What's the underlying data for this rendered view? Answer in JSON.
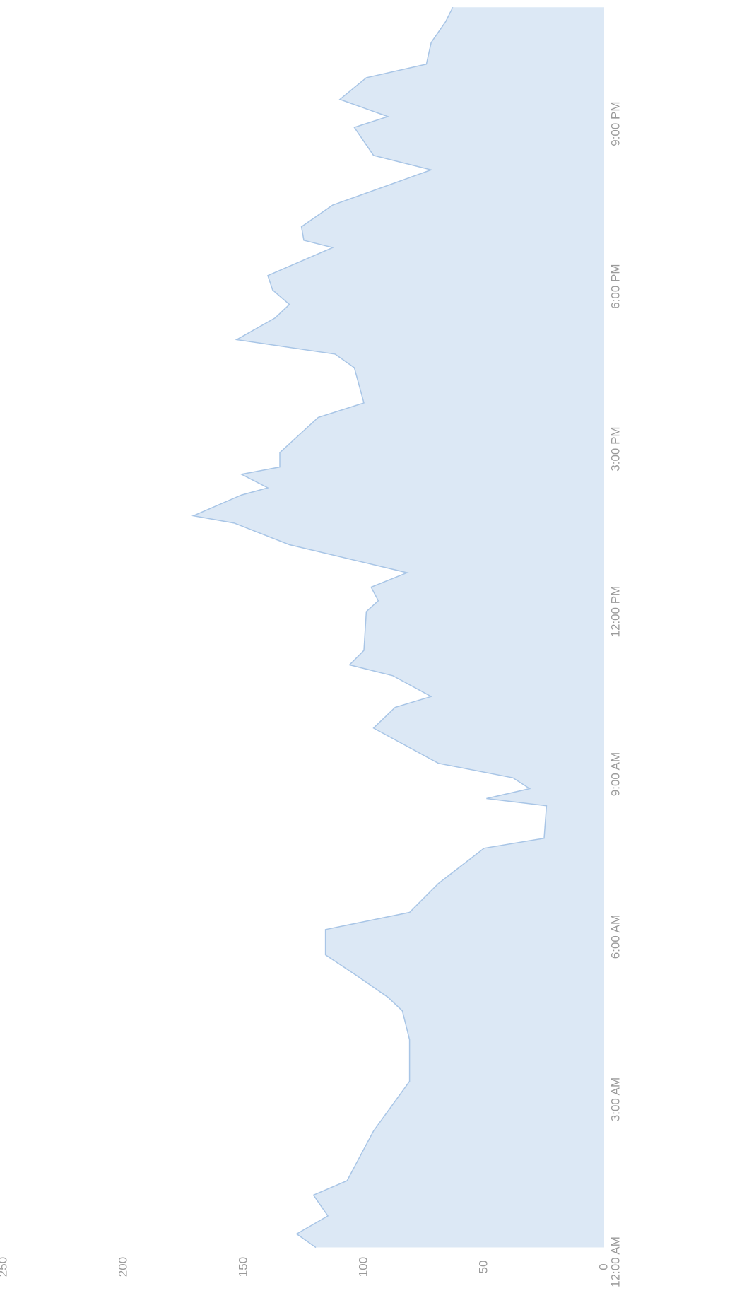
{
  "chart_data": {
    "type": "area",
    "color": "#dce8f5",
    "line_color": "#a8c5e6",
    "x": [
      16,
      31,
      51,
      74,
      90,
      145,
      200,
      246,
      278,
      293,
      317,
      340,
      368,
      387,
      419,
      458,
      469,
      505,
      513,
      524,
      536,
      552,
      591,
      614,
      626,
      649,
      661,
      677,
      720,
      732,
      747,
      763,
      794,
      818,
      826,
      849,
      857,
      872,
      880,
      896,
      935,
      951,
      990,
      1005,
      1021,
      1045,
      1060,
      1076,
      1092,
      1123,
      1131,
      1146,
      1170,
      1209,
      1225,
      1256,
      1268,
      1287,
      1311,
      1326,
      1350,
      1373,
      1389
    ],
    "values": [
      120,
      128,
      115,
      121,
      107,
      96,
      81,
      81,
      84,
      90,
      103,
      116,
      116,
      81,
      69,
      50,
      25,
      24,
      49,
      31,
      38,
      69,
      96,
      87,
      72,
      88,
      106,
      100,
      99,
      94,
      97,
      82,
      131,
      154,
      171,
      151,
      140,
      151,
      135,
      135,
      119,
      100,
      104,
      112,
      153,
      137,
      131,
      138,
      140,
      113,
      125,
      126,
      113,
      72,
      96,
      104,
      90,
      110,
      99,
      74,
      72,
      66,
      63
    ],
    "xlim": [
      0,
      1390
    ],
    "xticks": [
      {
        "value": 0,
        "label": "12:00 AM"
      },
      {
        "value": 180,
        "label": "3:00 AM"
      },
      {
        "value": 360,
        "label": "6:00 AM"
      },
      {
        "value": 540,
        "label": "9:00 AM"
      },
      {
        "value": 720,
        "label": "12:00 PM"
      },
      {
        "value": 900,
        "label": "3:00 PM"
      },
      {
        "value": 1080,
        "label": "6:00 PM"
      },
      {
        "value": 1260,
        "label": "9:00 PM"
      }
    ],
    "ylim": [
      0,
      250
    ],
    "yticks": [
      0,
      50,
      100,
      150,
      200,
      250
    ]
  }
}
